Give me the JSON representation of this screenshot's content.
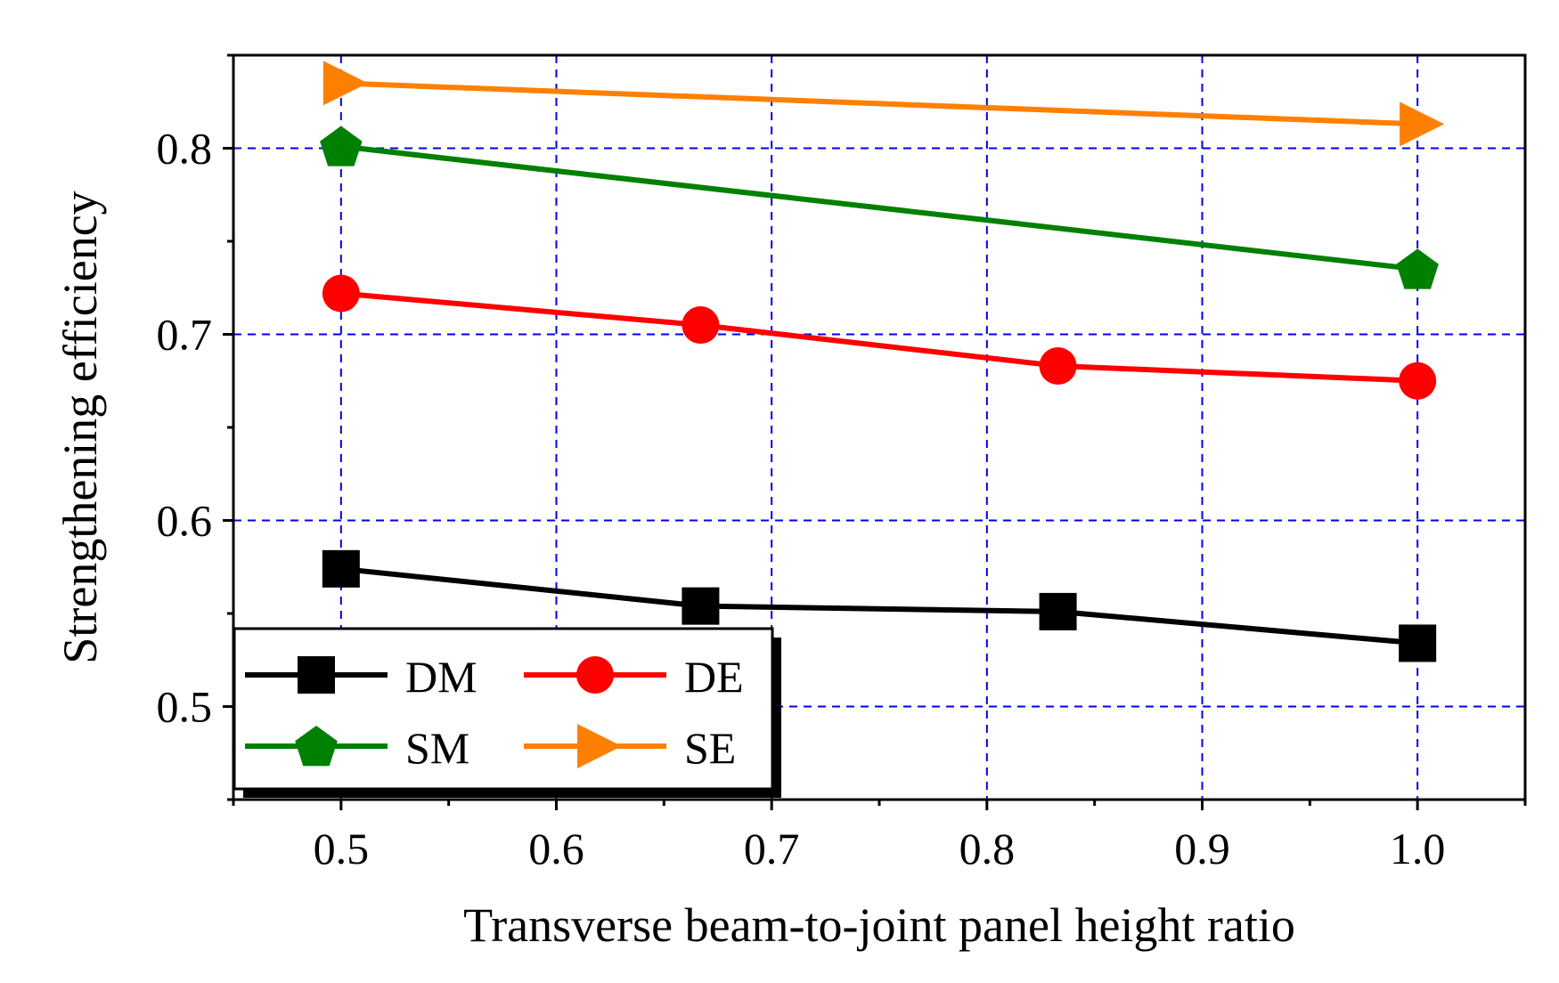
{
  "chart_data": {
    "type": "line",
    "title": "",
    "xlabel": "Transverse beam-to-joint panel height ratio",
    "ylabel": "Strengthening efficiency",
    "xlim": [
      0.45,
      1.05
    ],
    "ylim": [
      0.45,
      0.85
    ],
    "xticks": [
      0.5,
      0.6,
      0.7,
      0.8,
      0.9,
      1.0
    ],
    "xtick_labels": [
      "0.5",
      "0.6",
      "0.7",
      "0.8",
      "0.9",
      "1.0"
    ],
    "yticks": [
      0.5,
      0.6,
      0.7,
      0.8
    ],
    "ytick_labels": [
      "0.5",
      "0.6",
      "0.7",
      "0.8"
    ],
    "grid": true,
    "legend_position": "bottom-left",
    "series": [
      {
        "name": "DM",
        "color": "#000000",
        "marker": "square",
        "x": [
          0.5,
          0.667,
          0.833,
          1.0
        ],
        "y": [
          0.574,
          0.554,
          0.551,
          0.534
        ]
      },
      {
        "name": "DE",
        "color": "#ff0000",
        "marker": "circle",
        "x": [
          0.5,
          0.667,
          0.833,
          1.0
        ],
        "y": [
          0.722,
          0.705,
          0.683,
          0.675
        ]
      },
      {
        "name": "SM",
        "color": "#008000",
        "marker": "pentagon",
        "x": [
          0.5,
          1.0
        ],
        "y": [
          0.801,
          0.735
        ]
      },
      {
        "name": "SE",
        "color": "#ff8000",
        "marker": "triangle-right",
        "x": [
          0.5,
          1.0
        ],
        "y": [
          0.835,
          0.813
        ]
      }
    ]
  }
}
